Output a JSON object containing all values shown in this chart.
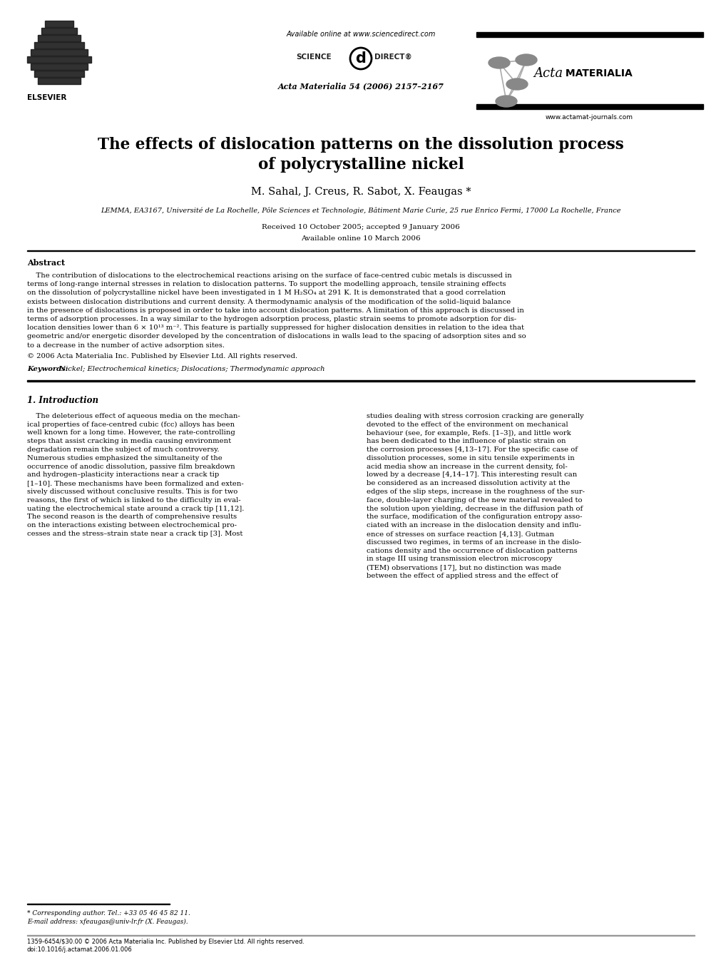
{
  "title_line1": "The effects of dislocation patterns on the dissolution process",
  "title_line2": "of polycrystalline nickel",
  "authors": "M. Sahal, J. Creus, R. Sabot, X. Feaugas *",
  "affiliation": "LEMMA, EA3167, Université de La Rochelle, Pôle Sciences et Technologie, Bâtiment Marie Curie, 25 rue Enrico Fermi, 17000 La Rochelle, France",
  "received": "Received 10 October 2005; accepted 9 January 2006",
  "available_paper": "Available online 10 March 2006",
  "journal_info": "Acta Materialia 54 (2006) 2157–2167",
  "available_online_hdr": "Available online at www.sciencedirect.com",
  "acta_website": "www.actamat-journals.com",
  "abstract_title": "Abstract",
  "abstract_lines": [
    "    The contribution of dislocations to the electrochemical reactions arising on the surface of face-centred cubic metals is discussed in",
    "terms of long-range internal stresses in relation to dislocation patterns. To support the modelling approach, tensile straining effects",
    "on the dissolution of polycrystalline nickel have been investigated in 1 M H₂SO₄ at 291 K. It is demonstrated that a good correlation",
    "exists between dislocation distributions and current density. A thermodynamic analysis of the modification of the solid–liquid balance",
    "in the presence of dislocations is proposed in order to take into account dislocation patterns. A limitation of this approach is discussed in",
    "terms of adsorption processes. In a way similar to the hydrogen adsorption process, plastic strain seems to promote adsorption for dis-",
    "location densities lower than 6 × 10¹³ m⁻². This feature is partially suppressed for higher dislocation densities in relation to the idea that",
    "geometric and/or energetic disorder developed by the concentration of dislocations in walls lead to the spacing of adsorption sites and so",
    "to a decrease in the number of active adsorption sites."
  ],
  "copyright": "© 2006 Acta Materialia Inc. Published by Elsevier Ltd. All rights reserved.",
  "keywords_label": "Keywords:",
  "keywords_text": "  Nickel; Electrochemical kinetics; Dislocations; Thermodynamic approach",
  "section1_title": "1. Introduction",
  "col1_lines": [
    "    The deleterious effect of aqueous media on the mechan-",
    "ical properties of face-centred cubic (fcc) alloys has been",
    "well known for a long time. However, the rate-controlling",
    "steps that assist cracking in media causing environment",
    "degradation remain the subject of much controversy.",
    "Numerous studies emphasized the simultaneity of the",
    "occurrence of anodic dissolution, passive film breakdown",
    "and hydrogen–plasticity interactions near a crack tip",
    "[1–10]. These mechanisms have been formalized and exten-",
    "sively discussed without conclusive results. This is for two",
    "reasons, the first of which is linked to the difficulty in eval-",
    "uating the electrochemical state around a crack tip [11,12].",
    "The second reason is the dearth of comprehensive results",
    "on the interactions existing between electrochemical pro-",
    "cesses and the stress–strain state near a crack tip [3]. Most"
  ],
  "col2_lines": [
    "studies dealing with stress corrosion cracking are generally",
    "devoted to the effect of the environment on mechanical",
    "behaviour (see, for example, Refs. [1–3]), and little work",
    "has been dedicated to the influence of plastic strain on",
    "the corrosion processes [4,13–17]. For the specific case of",
    "dissolution processes, some in situ tensile experiments in",
    "acid media show an increase in the current density, fol-",
    "lowed by a decrease [4,14–17]. This interesting result can",
    "be considered as an increased dissolution activity at the",
    "edges of the slip steps, increase in the roughness of the sur-",
    "face, double-layer charging of the new material revealed to",
    "the solution upon yielding, decrease in the diffusion path of",
    "the surface, modification of the configuration entropy asso-",
    "ciated with an increase in the dislocation density and influ-",
    "ence of stresses on surface reaction [4,13]. Gutman",
    "discussed two regimes, in terms of an increase in the dislo-",
    "cations density and the occurrence of dislocation patterns",
    "in stage III using transmission electron microscopy",
    "(TEM) observations [17], but no distinction was made",
    "between the effect of applied stress and the effect of"
  ],
  "footnote_star": "* Corresponding author. Tel.: +33 05 46 45 82 11.",
  "footnote_email": "E-mail address: xfeaugas@univ-lr.fr (X. Feaugas).",
  "bottom_line1": "1359-6454/$30.00 © 2006 Acta Materialia Inc. Published by Elsevier Ltd. All rights reserved.",
  "bottom_line2": "doi:10.1016/j.actamat.2006.01.006",
  "body_fs": 7.2,
  "small_fs": 6.5,
  "title_fs": 15.5,
  "author_fs": 10.5,
  "affil_fs": 7.0,
  "date_fs": 7.5,
  "section_fs": 8.5,
  "abstract_label_fs": 8.0
}
